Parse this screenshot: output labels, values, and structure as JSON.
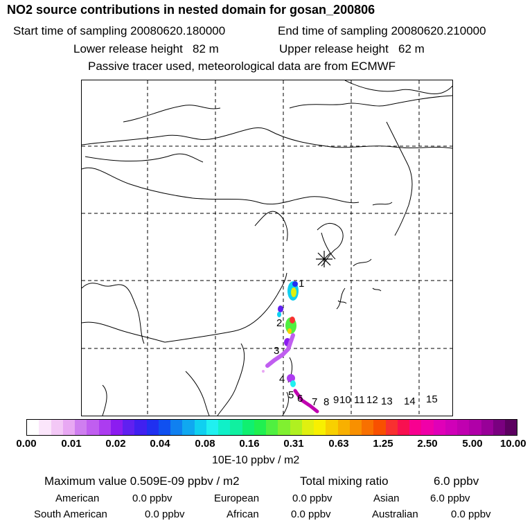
{
  "header": {
    "title": "NO2 source contributions in nested domain for gosan_200806",
    "start_label": "Start time of sampling 20080620.180000",
    "end_label": "End time of sampling 20080620.210000",
    "lower_label": "Lower release height   82 m",
    "upper_label": "Upper release height   62 m",
    "tracer_label": "Passive tracer used, meteorological data are from ECMWF"
  },
  "map": {
    "station_marker": "asterisk-icon",
    "region_labels": [
      "1",
      "2",
      "3",
      "4",
      "5",
      "6",
      "7",
      "8",
      "9",
      "10",
      "11",
      "12",
      "13",
      "14",
      "15"
    ]
  },
  "colorbar": {
    "tick_labels": [
      "0.00",
      "0.01",
      "0.02",
      "0.04",
      "0.08",
      "0.16",
      "0.31",
      "0.63",
      "1.25",
      "2.50",
      "5.00",
      "10.00"
    ],
    "unit": "10E-10 ppbv / m2",
    "colors": [
      "#ffffff",
      "#fbe6fb",
      "#f3c8f6",
      "#e8a8f3",
      "#cf7ef0",
      "#c05ef0",
      "#ac3cf0",
      "#8c1cf0",
      "#6020f0",
      "#4020f0",
      "#2030f0",
      "#1050f0",
      "#1080f0",
      "#10a8f0",
      "#10d0f0",
      "#20f0f0",
      "#10f0c8",
      "#10f0a0",
      "#10f070",
      "#20f050",
      "#50f040",
      "#80f030",
      "#b0f020",
      "#e0f010",
      "#f8f000",
      "#f8d000",
      "#f8b000",
      "#f89000",
      "#f87000",
      "#f85000",
      "#f83030",
      "#f81050",
      "#f80090",
      "#f000a8",
      "#e000b8",
      "#d000b8",
      "#c000b0",
      "#b000a8",
      "#980098",
      "#7a0080",
      "#5c0060"
    ]
  },
  "summary": {
    "max_value": "Maximum value  0.509E-09 ppbv / m2",
    "total_mixing": "Total mixing ratio",
    "total_value": "6.0 ppbv",
    "american_label": "American",
    "american_value": "0.0 ppbv",
    "european_label": "European",
    "european_value": "0.0 ppbv",
    "asian_label": "Asian",
    "asian_value": "6.0 ppbv",
    "south_american_label": "South American",
    "south_american_value": "0.0 ppbv",
    "african_label": "African",
    "african_value": "0.0 ppbv",
    "australian_label": "Australian",
    "australian_value": "0.0 ppbv"
  }
}
